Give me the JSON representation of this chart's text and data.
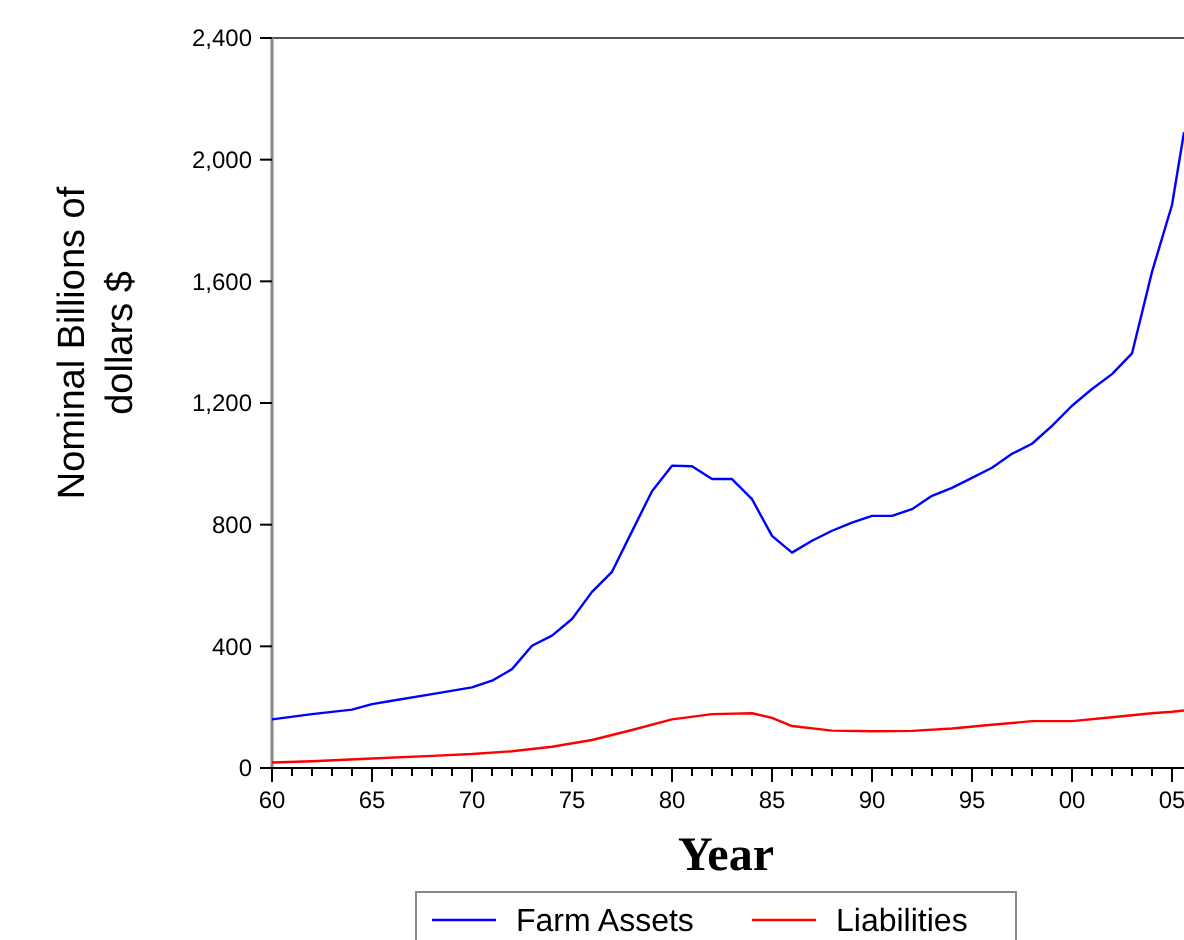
{
  "chart_data": {
    "type": "line",
    "xlabel": "Year",
    "ylabel": "Nominal Billions of\ndollars $",
    "xlim": [
      1960,
      2005.6
    ],
    "ylim": [
      0,
      2400
    ],
    "xticks": [
      {
        "value": 1960,
        "label": "60"
      },
      {
        "value": 1961,
        "label": null
      },
      {
        "value": 1962,
        "label": null
      },
      {
        "value": 1963,
        "label": null
      },
      {
        "value": 1964,
        "label": null
      },
      {
        "value": 1965,
        "label": "65"
      },
      {
        "value": 1966,
        "label": null
      },
      {
        "value": 1967,
        "label": null
      },
      {
        "value": 1968,
        "label": null
      },
      {
        "value": 1969,
        "label": null
      },
      {
        "value": 1970,
        "label": "70"
      },
      {
        "value": 1971,
        "label": null
      },
      {
        "value": 1972,
        "label": null
      },
      {
        "value": 1973,
        "label": null
      },
      {
        "value": 1974,
        "label": null
      },
      {
        "value": 1975,
        "label": "75"
      },
      {
        "value": 1976,
        "label": null
      },
      {
        "value": 1977,
        "label": null
      },
      {
        "value": 1978,
        "label": null
      },
      {
        "value": 1979,
        "label": null
      },
      {
        "value": 1980,
        "label": "80"
      },
      {
        "value": 1981,
        "label": null
      },
      {
        "value": 1982,
        "label": null
      },
      {
        "value": 1983,
        "label": null
      },
      {
        "value": 1984,
        "label": null
      },
      {
        "value": 1985,
        "label": "85"
      },
      {
        "value": 1986,
        "label": null
      },
      {
        "value": 1987,
        "label": null
      },
      {
        "value": 1988,
        "label": null
      },
      {
        "value": 1989,
        "label": null
      },
      {
        "value": 1990,
        "label": "90"
      },
      {
        "value": 1991,
        "label": null
      },
      {
        "value": 1992,
        "label": null
      },
      {
        "value": 1993,
        "label": null
      },
      {
        "value": 1994,
        "label": null
      },
      {
        "value": 1995,
        "label": "95"
      },
      {
        "value": 1996,
        "label": null
      },
      {
        "value": 1997,
        "label": null
      },
      {
        "value": 1998,
        "label": null
      },
      {
        "value": 1999,
        "label": null
      },
      {
        "value": 2000,
        "label": "00"
      },
      {
        "value": 2001,
        "label": null
      },
      {
        "value": 2002,
        "label": null
      },
      {
        "value": 2003,
        "label": null
      },
      {
        "value": 2004,
        "label": null
      },
      {
        "value": 2005,
        "label": "05"
      }
    ],
    "yticks": [
      0,
      400,
      800,
      {
        "value": 1200,
        "label": "1,200"
      },
      {
        "value": 1600,
        "label": "1,600"
      },
      {
        "value": 2000,
        "label": "2,000"
      },
      {
        "value": 2400,
        "label": "2,400"
      }
    ],
    "grid": false,
    "legend": "bottom",
    "marker": "none",
    "line_style": "solid",
    "series": [
      {
        "name": "Farm Assets",
        "color": "#0000ff",
        "x": [
          1960,
          1962,
          1964,
          1965,
          1966,
          1968,
          1970,
          1971,
          1972,
          1973,
          1974,
          1975,
          1976,
          1977,
          1978,
          1979,
          1980,
          1981,
          1982,
          1983,
          1984,
          1985,
          1986,
          1987,
          1988,
          1989,
          1990,
          1991,
          1992,
          1993,
          1994,
          1995,
          1996,
          1997,
          1998,
          1999,
          2000,
          2001,
          2002,
          2003,
          2004,
          2005,
          2005.6
        ],
        "values": [
          160,
          177,
          192,
          210,
          221,
          243,
          265,
          287,
          325,
          402,
          435,
          490,
          579,
          645,
          778,
          910,
          994,
          992,
          950,
          950,
          884,
          763,
          708,
          747,
          780,
          807,
          829,
          829,
          851,
          895,
          921,
          954,
          987,
          1033,
          1066,
          1125,
          1191,
          1246,
          1295,
          1363,
          1631,
          1851,
          2090
        ]
      },
      {
        "name": "Liabilities",
        "color": "#ff0000",
        "x": [
          1960,
          1962,
          1965,
          1968,
          1970,
          1972,
          1974,
          1976,
          1978,
          1980,
          1982,
          1984,
          1985,
          1986,
          1988,
          1990,
          1992,
          1994,
          1996,
          1998,
          2000,
          2002,
          2004,
          2005,
          2005.6
        ],
        "values": [
          18,
          22,
          31,
          40,
          46,
          55,
          70,
          92,
          125,
          160,
          177,
          180,
          165,
          138,
          123,
          121,
          122,
          130,
          142,
          154,
          154,
          167,
          180,
          185,
          189
        ]
      }
    ]
  }
}
